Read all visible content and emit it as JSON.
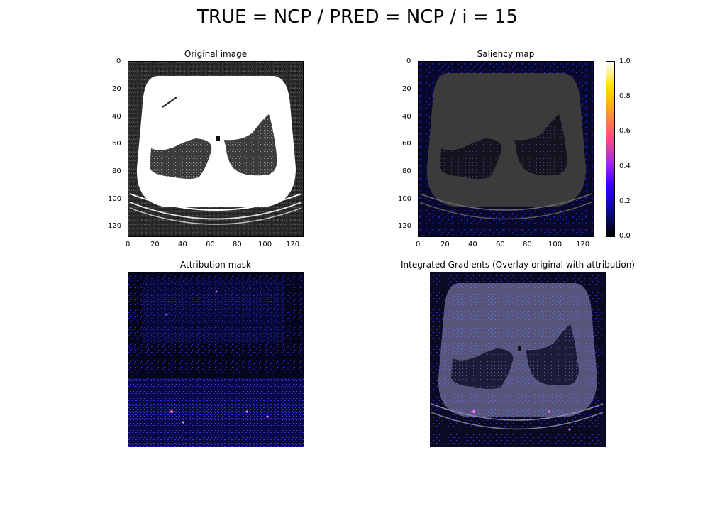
{
  "figure": {
    "title": "TRUE = NCP / PRED = NCP / i = 15"
  },
  "panels": {
    "original": {
      "title": "Original image"
    },
    "saliency": {
      "title": "Saliency map"
    },
    "attribution": {
      "title": "Attribution mask"
    },
    "integrated": {
      "title": "Integrated Gradients (Overlay original with attribution)"
    }
  },
  "axes": {
    "x_ticks": [
      "0",
      "20",
      "40",
      "60",
      "80",
      "100",
      "120"
    ],
    "y_ticks": [
      "0",
      "20",
      "40",
      "60",
      "80",
      "100",
      "120"
    ],
    "range": [
      0,
      128
    ]
  },
  "colorbar": {
    "ticks": [
      "0.0",
      "0.2",
      "0.4",
      "0.6",
      "0.8",
      "1.0"
    ],
    "range": [
      0.0,
      1.0
    ],
    "colormap": "gnuplot2",
    "colors": [
      "#000000",
      "#0b0b8a",
      "#3300ff",
      "#ab2be0",
      "#ff4f7a",
      "#ff9a30",
      "#ffe000",
      "#ffffff"
    ]
  }
}
